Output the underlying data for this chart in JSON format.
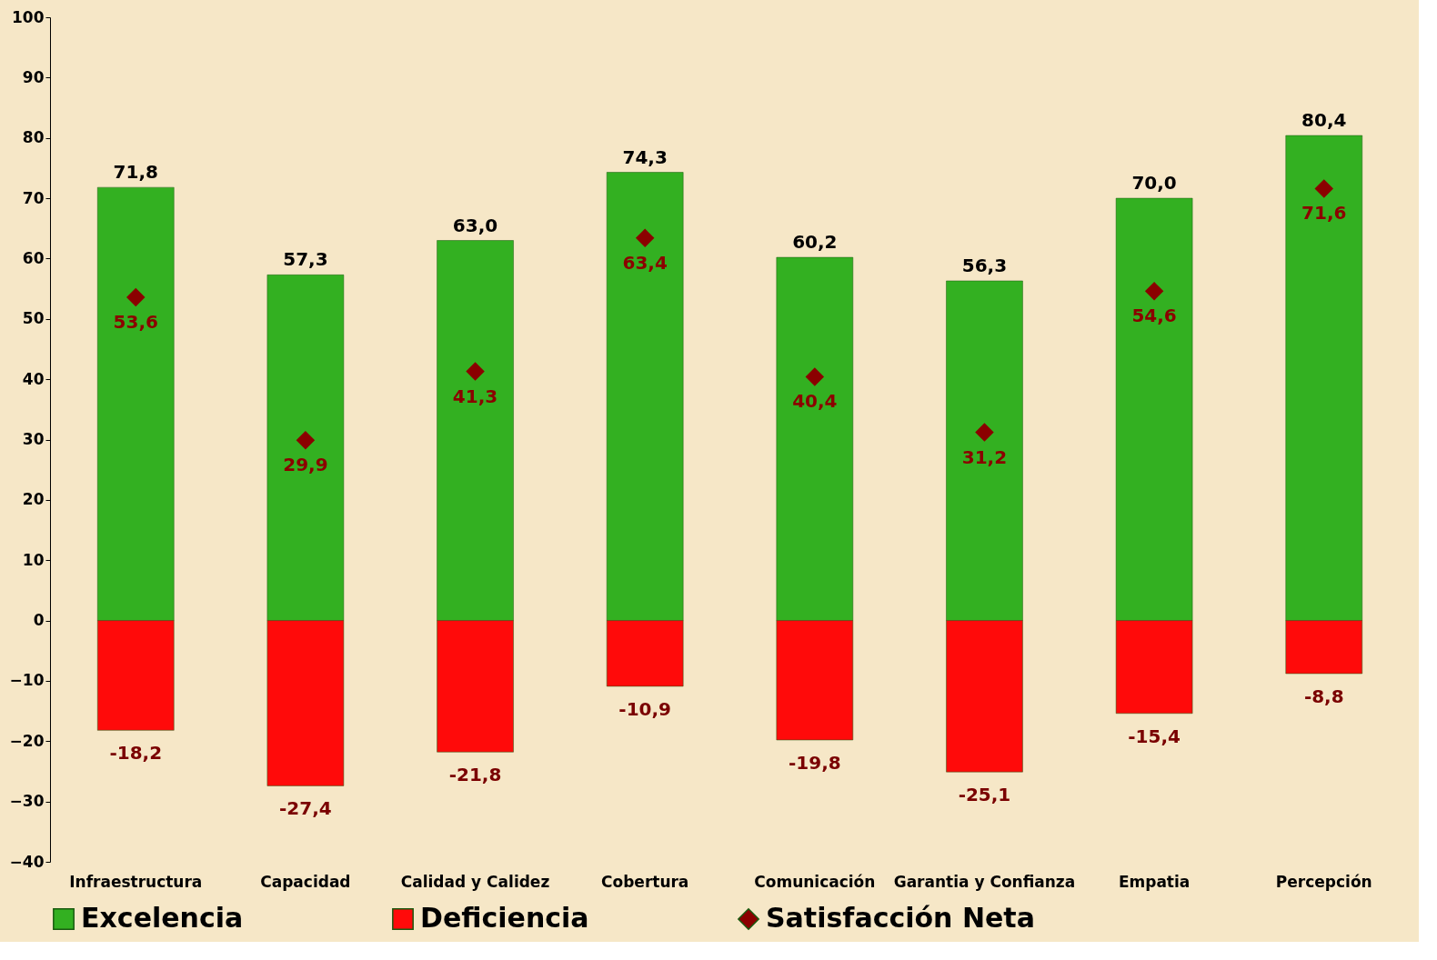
{
  "chart_data": {
    "type": "bar",
    "stacked": true,
    "grid": false,
    "legend": "bottom",
    "categories": [
      "Infraestructura",
      "Capacidad",
      "Calidad y Calidez",
      "Cobertura",
      "Comunicación",
      "Garantia y Confianza",
      "Empatia",
      "Percepción"
    ],
    "series": [
      {
        "name": "Excelencia",
        "color": "#33b021",
        "values": [
          71.8,
          57.3,
          63.0,
          74.3,
          60.2,
          56.3,
          70.0,
          80.4
        ],
        "value_labels": [
          "71,8",
          "57,3",
          "63,0",
          "74,3",
          "60,2",
          "56,3",
          "70,0",
          "80,4"
        ]
      },
      {
        "name": "Deficiencia",
        "color": "#ff0a0a",
        "values": [
          -18.2,
          -27.4,
          -21.8,
          -10.9,
          -19.8,
          -25.1,
          -15.4,
          -8.8
        ],
        "value_labels": [
          "-18,2",
          "-27,4",
          "-21,8",
          "-10,9",
          "-19,8",
          "-25,1",
          "-15,4",
          "-8,8"
        ]
      },
      {
        "name": "Satisfacción Neta",
        "type": "scatter",
        "marker": "diamond",
        "color": "#8b0000",
        "x": [
          "Infraestructura",
          "Capacidad",
          "Calidad y Calidez",
          "Cobertura",
          "Comunicación",
          "Garantia y Confianza",
          "Empatia",
          "Percepción"
        ],
        "values": [
          53.6,
          29.9,
          41.3,
          63.4,
          40.4,
          31.2,
          54.6,
          71.6
        ],
        "value_labels": [
          "53,6",
          "29,9",
          "41,3",
          "63,4",
          "40,4",
          "31,2",
          "54,6",
          "71,6"
        ]
      }
    ],
    "ylim": [
      -40,
      100
    ],
    "yticks": [
      -40,
      -30,
      -20,
      -10,
      0,
      10,
      20,
      30,
      40,
      50,
      60,
      70,
      80,
      90,
      100
    ]
  }
}
